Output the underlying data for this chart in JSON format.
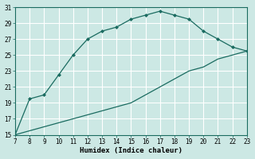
{
  "title": "",
  "xlabel": "Humidex (Indice chaleur)",
  "bg_color": "#cce8e4",
  "grid_color": "#ffffff",
  "line_color": "#1a6b60",
  "marker_color": "#1a6b60",
  "curve1_x": [
    7,
    8,
    9,
    10,
    11,
    12,
    13,
    14,
    15,
    16,
    17,
    18,
    19,
    20,
    21,
    22,
    23
  ],
  "curve1_y": [
    15,
    19.5,
    20,
    22.5,
    25,
    27,
    28,
    28.5,
    29.5,
    30,
    30.5,
    30,
    29.5,
    28,
    27,
    26,
    25.5
  ],
  "curve2_x": [
    7,
    8,
    9,
    10,
    11,
    12,
    13,
    14,
    15,
    16,
    17,
    18,
    19,
    20,
    21,
    22,
    23
  ],
  "curve2_y": [
    15,
    15.5,
    16,
    16.5,
    17,
    17.5,
    18,
    18.5,
    19,
    20,
    21,
    22,
    23,
    23.5,
    24.5,
    25,
    25.5
  ],
  "xlim": [
    7,
    23
  ],
  "ylim": [
    15,
    31
  ],
  "xticks": [
    7,
    8,
    9,
    10,
    11,
    12,
    13,
    14,
    15,
    16,
    17,
    18,
    19,
    20,
    21,
    22,
    23
  ],
  "yticks": [
    15,
    17,
    19,
    21,
    23,
    25,
    27,
    29,
    31
  ],
  "tick_fontsize": 5.5,
  "xlabel_fontsize": 6.5
}
